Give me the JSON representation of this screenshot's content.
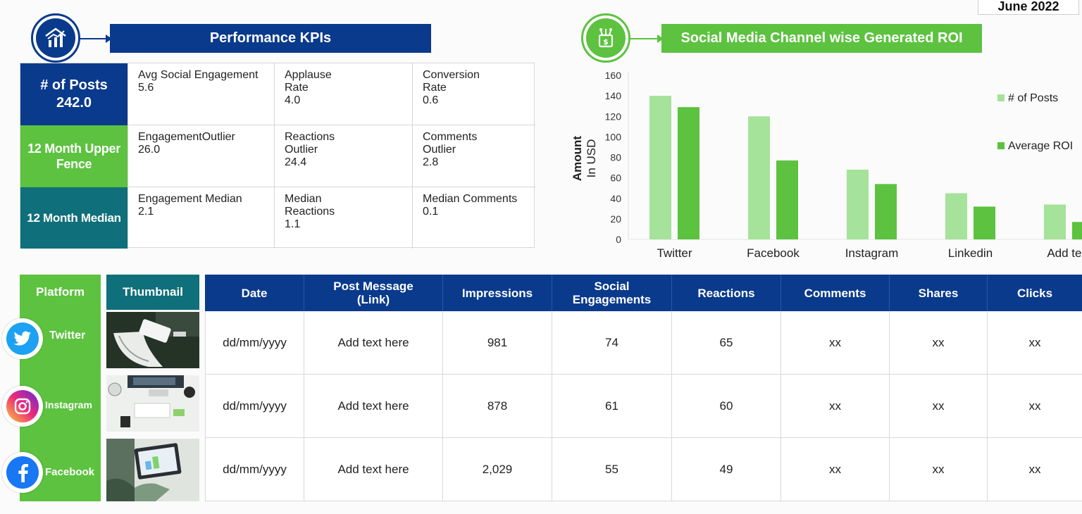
{
  "date_label": "June 2022",
  "kpi_section": {
    "title": "Performance KPIs",
    "icon": "bar-chart-icon",
    "rows": [
      {
        "header_line1": "# of Posts",
        "header_line2": "242.0",
        "cells": [
          {
            "label": "Avg Social Engagement",
            "value": "5.6"
          },
          {
            "label": "Applause Rate",
            "value": "4.0"
          },
          {
            "label": "Conversion Rate",
            "value": "0.6"
          }
        ]
      },
      {
        "header_line1": "12 Month Upper",
        "header_line2": "Fence",
        "cells": [
          {
            "label": "EngagementOutlier",
            "value": "26.0"
          },
          {
            "label": "Reactions Outlier",
            "value": "24.4"
          },
          {
            "label": "Comments Outlier",
            "value": "2.8"
          }
        ]
      },
      {
        "header_line1": "12 Month Median",
        "header_line2": "",
        "cells": [
          {
            "label": "Engagement Median",
            "value": "2.1"
          },
          {
            "label": "Median Reactions",
            "value": "1.1"
          },
          {
            "label": "Median Comments",
            "value": "0.1"
          }
        ]
      }
    ]
  },
  "roi_section": {
    "title": "Social Media Channel wise Generated ROI",
    "icon": "money-bag-icon"
  },
  "chart_data": {
    "type": "bar",
    "title": "",
    "ylabel_line1": "Amount",
    "ylabel_line2": "In USD",
    "xlabel": "",
    "ylim": [
      0,
      160
    ],
    "yticks": [
      0,
      20,
      40,
      60,
      80,
      100,
      120,
      140,
      160
    ],
    "grid": false,
    "legend_position": "right",
    "categories": [
      "Twitter",
      "Facebook",
      "Instagram",
      "Linkedin",
      "Add text"
    ],
    "series": [
      {
        "name": "# of Posts",
        "color": "#a5e29a",
        "values": [
          140,
          120,
          68,
          45,
          34
        ]
      },
      {
        "name": "Average ROI",
        "color": "#5cc23f",
        "values": [
          129,
          77,
          54,
          32,
          17
        ]
      }
    ]
  },
  "platforms": {
    "header": "Platform",
    "items": [
      {
        "name": "Twitter",
        "icon": "twitter-bird-icon",
        "color": "#1da1f2"
      },
      {
        "name": "Instagram",
        "icon": "instagram-camera-icon",
        "color": "#d62976"
      },
      {
        "name": "Facebook",
        "icon": "facebook-f-icon",
        "color": "#1877f2"
      }
    ]
  },
  "thumbnail_header": "Thumbnail",
  "posts_table": {
    "columns": [
      "Date",
      "Post Message (Link)",
      "Impressions",
      "Social Engagements",
      "Reactions",
      "Comments",
      "Shares",
      "Clicks"
    ],
    "rows": [
      [
        "dd/mm/yyyy",
        "Add text here",
        "981",
        "74",
        "65",
        "xx",
        "xx",
        "xx"
      ],
      [
        "dd/mm/yyyy",
        "Add text here",
        "878",
        "61",
        "60",
        "xx",
        "xx",
        "xx"
      ],
      [
        "dd/mm/yyyy",
        "Add text here",
        "2,029",
        "55",
        "49",
        "xx",
        "xx",
        "xx"
      ]
    ]
  }
}
